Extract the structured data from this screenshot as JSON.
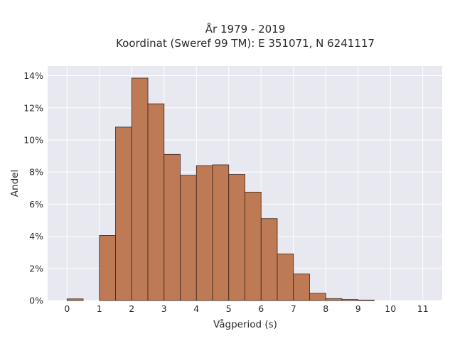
{
  "chart_data": {
    "type": "bar",
    "title_line1": "År 1979 - 2019",
    "title_line2": "Koordinat (Sweref 99 TM): E 351071, N 6241117",
    "xlabel": "Vågperiod (s)",
    "ylabel": "Andel",
    "bin_width": 0.5,
    "bin_starts": [
      0,
      0.5,
      1,
      1.5,
      2,
      2.5,
      3,
      3.5,
      4,
      4.5,
      5,
      5.5,
      6,
      6.5,
      7,
      7.5,
      8,
      8.5,
      9,
      9.5,
      10,
      10.5,
      11
    ],
    "values": [
      0.1,
      0,
      4.05,
      10.8,
      13.85,
      12.25,
      9.1,
      7.8,
      8.4,
      8.45,
      7.85,
      6.75,
      5.1,
      2.9,
      1.65,
      0.45,
      0.12,
      0.06,
      0.03,
      0,
      0,
      0,
      0
    ],
    "xlim": [
      -0.6,
      11.6
    ],
    "ylim": [
      0,
      14.6
    ],
    "x_ticks": [
      0,
      1,
      2,
      3,
      4,
      5,
      6,
      7,
      8,
      9,
      10,
      11
    ],
    "x_tick_labels": [
      "0",
      "1",
      "2",
      "3",
      "4",
      "5",
      "6",
      "7",
      "8",
      "9",
      "10",
      "11"
    ],
    "y_ticks": [
      0,
      2,
      4,
      6,
      8,
      10,
      12,
      14
    ],
    "y_tick_labels": [
      "0%",
      "2%",
      "4%",
      "6%",
      "8%",
      "10%",
      "12%",
      "14%"
    ],
    "grid": true,
    "colors": {
      "bar_fill": "#bd7a55",
      "bar_edge": "#3b2418",
      "plot_bg": "#e8e8f0",
      "grid": "#ffffff"
    }
  }
}
